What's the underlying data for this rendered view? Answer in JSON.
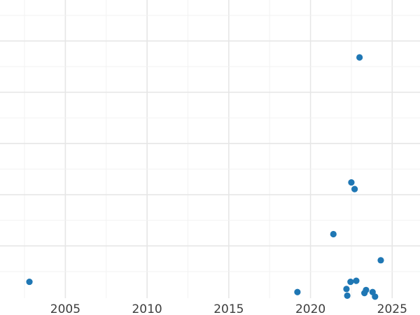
{
  "chart_data": {
    "type": "scatter",
    "xlabel": "",
    "ylabel": "",
    "title": "",
    "x_ticks": [
      2005,
      2010,
      2015,
      2020,
      2025
    ],
    "grid": true,
    "legend": "none",
    "point_color": "#1f77b4",
    "grid_major_color": "#e6e6e6",
    "grid_minor_color": "#f2f2f2",
    "y_major_step": 10,
    "y_minor_step": 5,
    "xlim": [
      2001.0,
      2026.7
    ],
    "ylim": [
      -0.2,
      58.0
    ],
    "points": [
      {
        "x": 2002.8,
        "y": 3.0
      },
      {
        "x": 2019.2,
        "y": 1.0
      },
      {
        "x": 2021.4,
        "y": 12.3
      },
      {
        "x": 2022.2,
        "y": 1.6
      },
      {
        "x": 2022.25,
        "y": 0.3
      },
      {
        "x": 2022.45,
        "y": 3.0
      },
      {
        "x": 2022.5,
        "y": 22.4
      },
      {
        "x": 2022.7,
        "y": 21.1
      },
      {
        "x": 2022.8,
        "y": 3.2
      },
      {
        "x": 2023.0,
        "y": 46.8
      },
      {
        "x": 2023.3,
        "y": 0.8
      },
      {
        "x": 2023.4,
        "y": 1.4
      },
      {
        "x": 2023.8,
        "y": 1.0
      },
      {
        "x": 2023.95,
        "y": 0.1
      },
      {
        "x": 2024.3,
        "y": 7.2
      }
    ]
  }
}
